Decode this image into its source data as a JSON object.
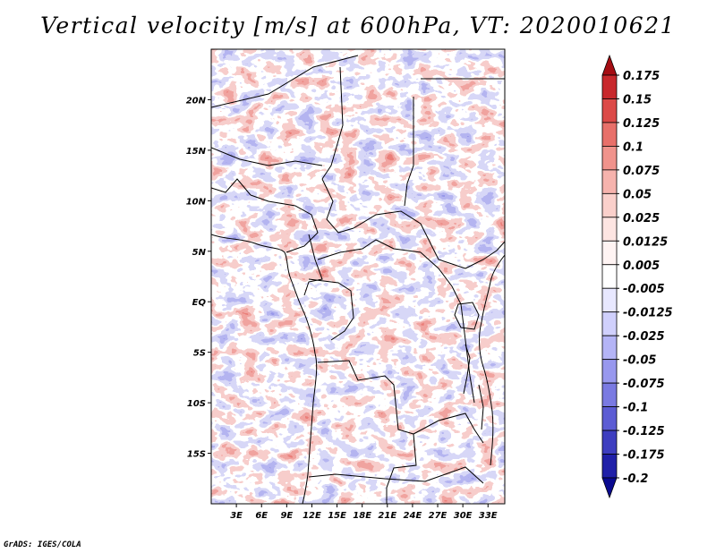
{
  "title": "Vertical velocity [m/s] at 600hPa, VT: 2020010621",
  "credit": "GrADS: IGES/COLA",
  "map": {
    "lon_range": [
      0,
      35
    ],
    "lat_range": [
      -20,
      25
    ],
    "lon_ticks": [
      {
        "value": 3,
        "label": "3E"
      },
      {
        "value": 6,
        "label": "6E"
      },
      {
        "value": 9,
        "label": "9E"
      },
      {
        "value": 12,
        "label": "12E"
      },
      {
        "value": 15,
        "label": "15E"
      },
      {
        "value": 18,
        "label": "18E"
      },
      {
        "value": 21,
        "label": "21E"
      },
      {
        "value": 24,
        "label": "24E"
      },
      {
        "value": 27,
        "label": "27E"
      },
      {
        "value": 30,
        "label": "30E"
      },
      {
        "value": 33,
        "label": "33E"
      }
    ],
    "lat_ticks": [
      {
        "value": 20,
        "label": "20N"
      },
      {
        "value": 15,
        "label": "15N"
      },
      {
        "value": 10,
        "label": "10N"
      },
      {
        "value": 5,
        "label": "5N"
      },
      {
        "value": 0,
        "label": "EQ"
      },
      {
        "value": -5,
        "label": "5S"
      },
      {
        "value": -10,
        "label": "10S"
      },
      {
        "value": -15,
        "label": "15S"
      }
    ]
  },
  "colorbar": {
    "labels": [
      "0.175",
      "0.15",
      "0.125",
      "0.1",
      "0.075",
      "0.05",
      "0.025",
      "0.0125",
      "0.005",
      "-0.005",
      "-0.0125",
      "-0.025",
      "-0.05",
      "-0.075",
      "-0.1",
      "-0.125",
      "-0.175",
      "-0.2"
    ],
    "colors": [
      "#a50d13",
      "#c8282c",
      "#dc4a48",
      "#e8706a",
      "#f0938c",
      "#f6b3ad",
      "#fad0cb",
      "#fde5e2",
      "#fff4f3",
      "#ffffff",
      "#e8e8ff",
      "#d0d0fc",
      "#b4b4f6",
      "#9898ee",
      "#7a7ae2",
      "#5c5cd4",
      "#3e3ec0",
      "#2020a8",
      "#0a0a90"
    ]
  }
}
